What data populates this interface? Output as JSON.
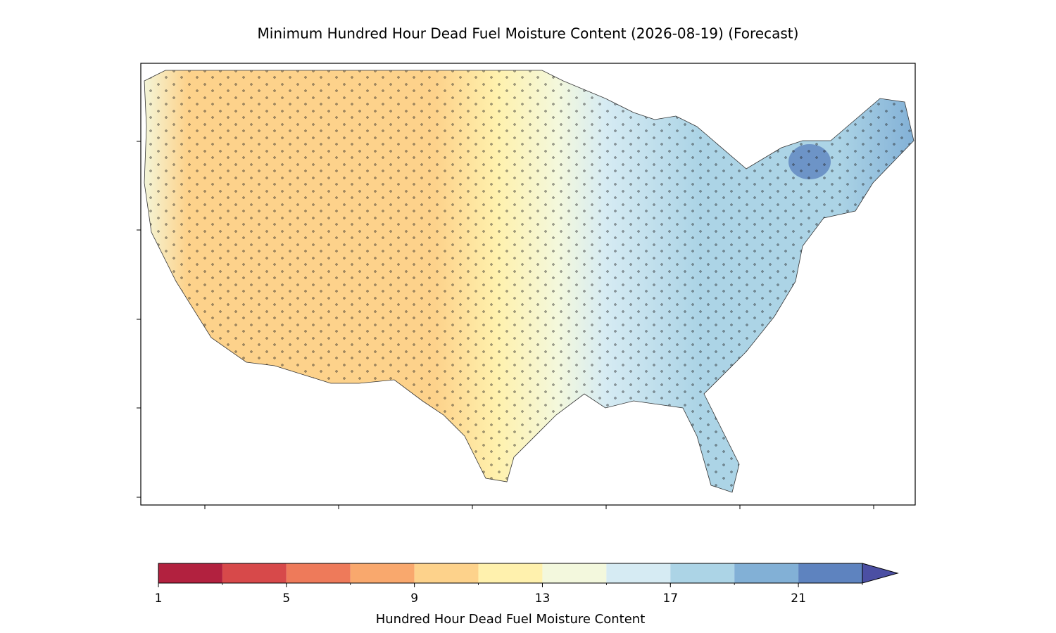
{
  "title": "Minimum Hundred Hour Dead Fuel Moisture Content (2026-08-19) (Forecast)",
  "colorbar": {
    "levels": [
      1,
      3,
      5,
      7,
      9,
      11,
      13,
      15,
      17,
      19,
      21,
      23
    ],
    "colors": [
      "#b2213f",
      "#d7494a",
      "#ee7a5a",
      "#f9a86d",
      "#fdd28b",
      "#fff1ad",
      "#f3f8dd",
      "#d6ebf3",
      "#acd4e6",
      "#82b0d6",
      "#5e83bf"
    ],
    "extend_color": "#4b4fa3",
    "ticks": [
      1,
      5,
      9,
      13,
      17,
      21
    ],
    "label": "Hundred Hour Dead Fuel Moisture Content"
  }
}
